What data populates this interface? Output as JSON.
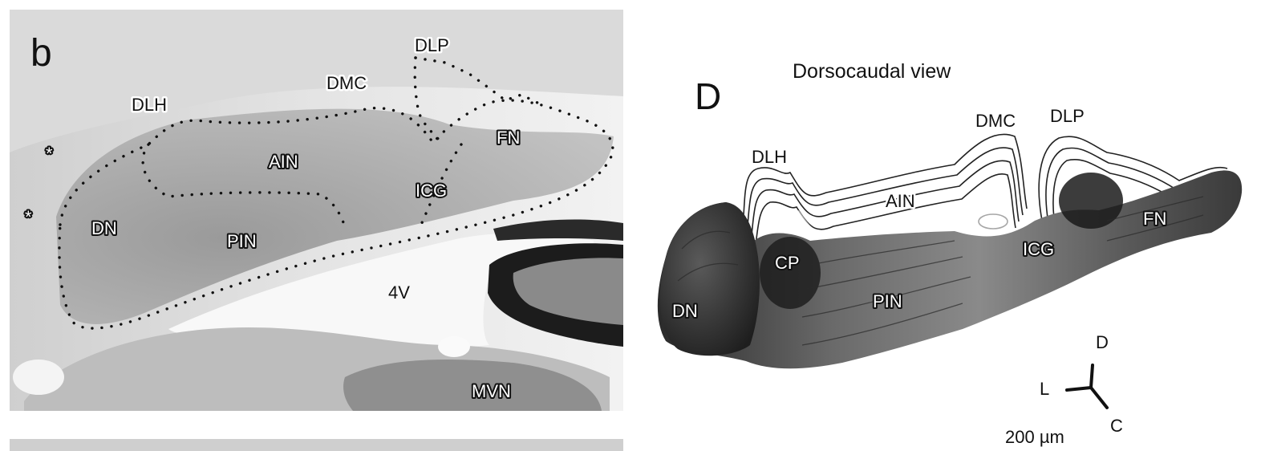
{
  "panel_b": {
    "letter": "b",
    "labels": {
      "dlp": "DLP",
      "dmc": "DMC",
      "dlh": "DLH",
      "fn": "FN",
      "ain": "AIN",
      "icg": "ICG",
      "dn": "DN",
      "pin": "PIN",
      "v4": "4V",
      "mvn": "MVN"
    },
    "asterisk": "*"
  },
  "panel_d": {
    "letter": "D",
    "title": "Dorsocaudal view",
    "labels": {
      "dmc": "DMC",
      "dlp": "DLP",
      "dlh": "DLH",
      "ain": "AIN",
      "fn": "FN",
      "icg": "ICG",
      "cp": "CP",
      "pin": "PIN",
      "dn": "DN"
    },
    "compass": {
      "d": "D",
      "l": "L",
      "c": "C"
    },
    "scale": "200 µm"
  }
}
